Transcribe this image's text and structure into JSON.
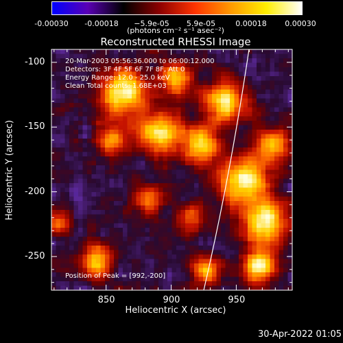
{
  "colorbar": {
    "ticks": [
      "-0.00030",
      "-0.00018",
      "−5.9e-05",
      "5.9e-05",
      "0.00018",
      "0.00030"
    ],
    "tick_values": [
      -0.0003,
      -0.00018,
      -5.9e-05,
      5.9e-05,
      0.00018,
      0.0003
    ],
    "units": "(photons cm⁻² s⁻¹ asec⁻²)",
    "colors": [
      "#0000ff",
      "#5a00b4",
      "#000000",
      "#8b0000",
      "#ff3300",
      "#ff9900",
      "#ffee00",
      "#ffffff"
    ]
  },
  "chart_data": {
    "type": "heatmap",
    "title": "Reconstructed RHESSI Image",
    "xlabel": "Heliocentric X (arcsec)",
    "ylabel": "Heliocentric Y (arcsec)",
    "x_ticks": [
      850,
      900,
      950
    ],
    "y_ticks": [
      -100,
      -150,
      -200,
      -250
    ],
    "xlim": [
      808,
      993
    ],
    "ylim": [
      -276,
      -90
    ],
    "peak": [
      992,
      -200
    ]
  },
  "info": {
    "line1": "20-Mar-2003 05:56:36.000 to 06:00:12.000",
    "line2": "Detectors: 3F 4F 5F 6F 7F 8F, Att 0",
    "line3": "Energy Range: 12.0 - 25.0 keV",
    "line4": "Clean     Total counts: 1.68E+03"
  },
  "peak_text": "Position of Peak = [992,-200]",
  "timestamp": "30-Apr-2022 01:05"
}
